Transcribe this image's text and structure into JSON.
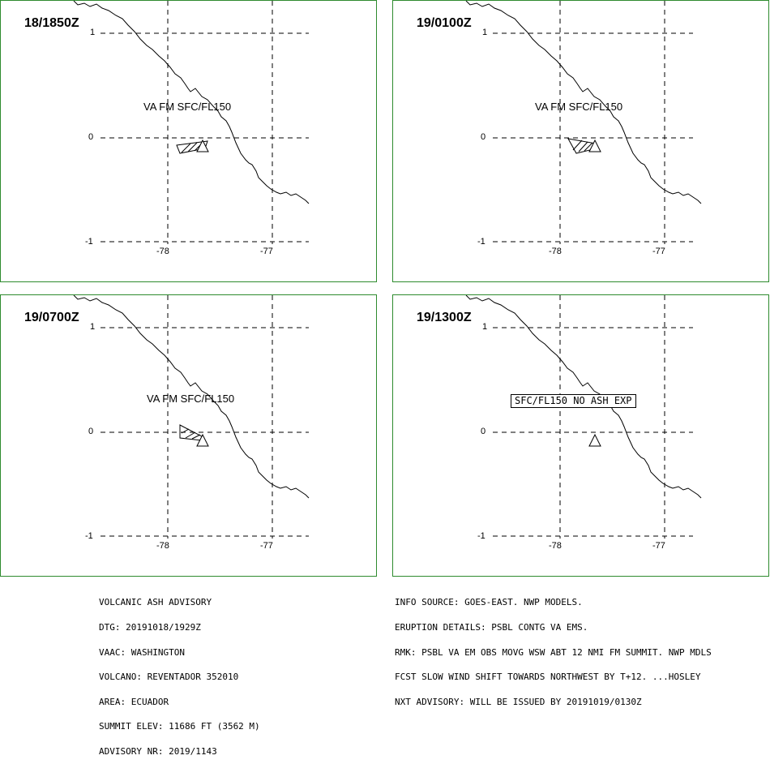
{
  "panels": [
    {
      "time": "18/1850Z",
      "label": "VA FM SFC/FL150",
      "no_ash": ""
    },
    {
      "time": "19/0100Z",
      "label": "VA FM SFC/FL150",
      "no_ash": ""
    },
    {
      "time": "19/0700Z",
      "label": "VA FM SFC/FL150",
      "no_ash": ""
    },
    {
      "time": "19/1300Z",
      "label": "",
      "no_ash": "SFC/FL150 NO ASH EXP"
    }
  ],
  "axes": {
    "lat_labels": [
      "1",
      "0",
      "-1"
    ],
    "lon_labels": [
      "-78",
      "-77"
    ]
  },
  "colors": {
    "panel_border": "#2e8b2e",
    "grid": "#000000"
  },
  "advisory": {
    "header": "VOLCANIC ASH ADVISORY",
    "dtg": "DTG: 20191018/1929Z",
    "vaac": "VAAC: WASHINGTON",
    "volcano": "VOLCANO: REVENTADOR 352010",
    "area": "AREA: ECUADOR",
    "summit": "SUMMIT ELEV: 11686 FT (3562 M)",
    "advisory_nr": "ADVISORY NR: 2019/1143"
  },
  "info": {
    "source": "INFO SOURCE: GOES-EAST. NWP MODELS.",
    "eruption": "ERUPTION DETAILS: PSBL CONTG VA EMS.",
    "rmk": "RMK: PSBL VA EM OBS MOVG WSW ABT 12 NMI FM SUMMIT. NWP MDLS",
    "fcst": "FCST SLOW WIND SHIFT TOWARDS NORTHWEST BY T+12. ...HOSLEY",
    "nxt": "NXT ADVISORY: WILL BE ISSUED BY 20191019/0130Z"
  }
}
